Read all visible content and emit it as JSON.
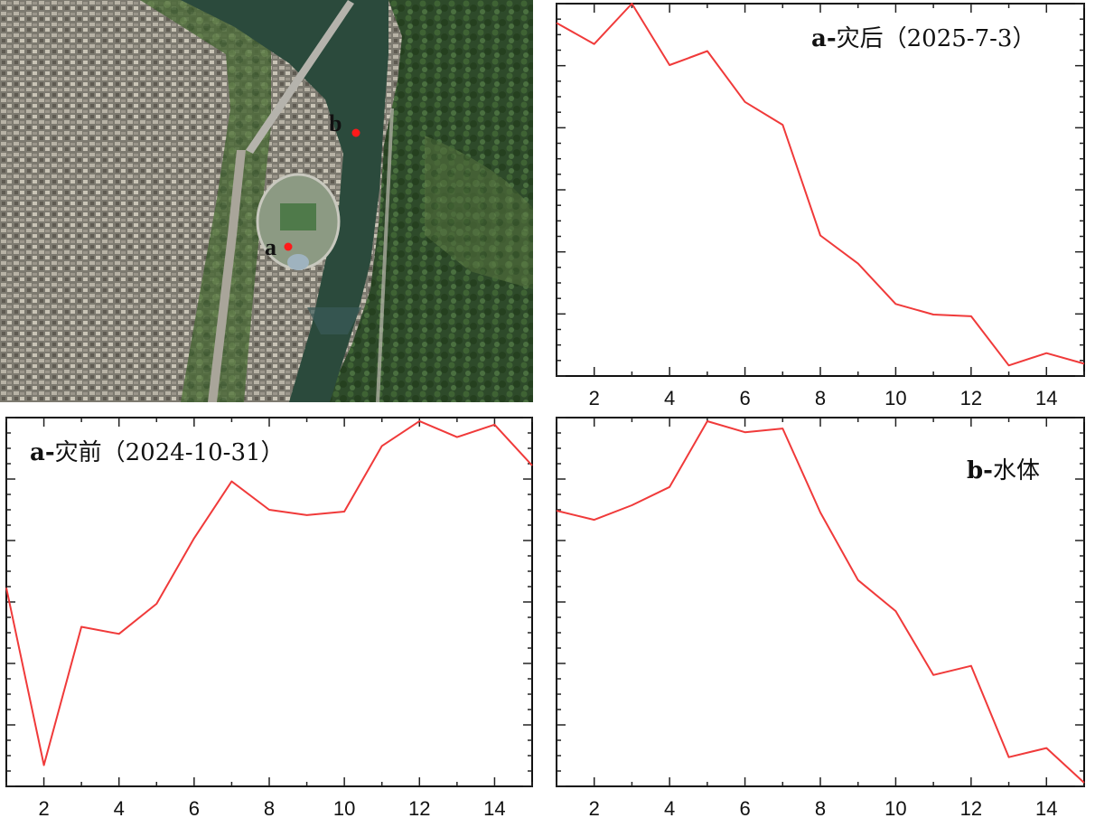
{
  "map": {
    "marker_a_label": "a",
    "marker_b_label": "b",
    "marker_color": "#ff1a1a"
  },
  "chart_data": [
    {
      "id": "after",
      "type": "line",
      "title_bold": "a-",
      "title_rest": "灾后（2025-7-3）",
      "xlabel": "",
      "ylabel": "",
      "x": [
        1,
        2,
        3,
        4,
        5,
        6,
        7,
        8,
        9,
        10,
        11,
        12,
        13,
        14,
        15
      ],
      "values": [
        0.945,
        0.885,
        1.0,
        0.825,
        0.865,
        0.72,
        0.655,
        0.34,
        0.26,
        0.145,
        0.115,
        0.11,
        -0.03,
        0.005,
        -0.025
      ],
      "xlim": [
        1,
        15
      ],
      "ylim": [
        -0.06,
        1.0
      ],
      "xticks": [
        2,
        4,
        6,
        8,
        10,
        12,
        14
      ],
      "grid": false,
      "color": "#f03a3a"
    },
    {
      "id": "before",
      "type": "line",
      "title_bold": "a-",
      "title_rest": "灾前（2024-10-31）",
      "xlabel": "",
      "ylabel": "",
      "x": [
        1,
        2,
        3,
        4,
        5,
        6,
        7,
        8,
        9,
        10,
        11,
        12,
        13,
        14,
        15
      ],
      "values": [
        0.5,
        0.0,
        0.39,
        0.37,
        0.455,
        0.64,
        0.8,
        0.72,
        0.705,
        0.715,
        0.9,
        0.97,
        0.925,
        0.96,
        0.845
      ],
      "xlim": [
        1,
        15
      ],
      "ylim": [
        -0.06,
        0.98
      ],
      "xticks": [
        2,
        4,
        6,
        8,
        10,
        12,
        14
      ],
      "grid": false,
      "color": "#f03a3a"
    },
    {
      "id": "water",
      "type": "line",
      "title_bold": "b-",
      "title_rest": "水体",
      "xlabel": "",
      "ylabel": "",
      "x": [
        1,
        2,
        3,
        4,
        5,
        6,
        7,
        8,
        9,
        10,
        11,
        12,
        13,
        14,
        15
      ],
      "values": [
        0.745,
        0.72,
        0.76,
        0.81,
        0.99,
        0.96,
        0.97,
        0.74,
        0.555,
        0.47,
        0.295,
        0.32,
        0.07,
        0.095,
        0.0
      ],
      "xlim": [
        1,
        15
      ],
      "ylim": [
        -0.01,
        1.0
      ],
      "xticks": [
        2,
        4,
        6,
        8,
        10,
        12,
        14
      ],
      "grid": false,
      "color": "#f03a3a"
    }
  ]
}
